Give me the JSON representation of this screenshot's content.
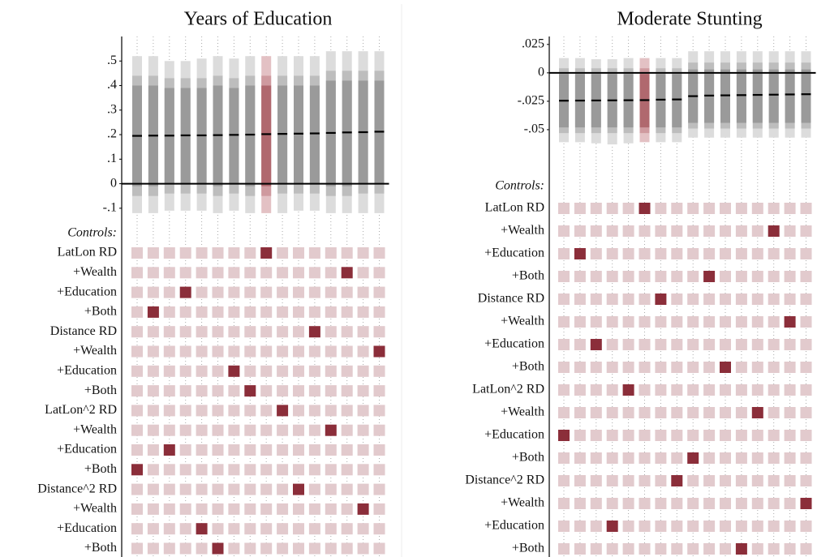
{
  "chart_data": [
    {
      "type": "spec_curve",
      "title": "Years of Education",
      "ylim": [
        -0.16,
        0.6
      ],
      "yticks": [
        {
          "value": 0.5,
          "label": ".5"
        },
        {
          "value": 0.4,
          "label": ".4"
        },
        {
          "value": 0.3,
          "label": ".3"
        },
        {
          "value": 0.2,
          "label": ".2"
        },
        {
          "value": 0.1,
          "label": ".1"
        },
        0,
        {
          "value": -0.1,
          "label": "-.1"
        }
      ],
      "estimates": [
        0.195,
        0.196,
        0.196,
        0.197,
        0.197,
        0.198,
        0.199,
        0.2,
        0.202,
        0.203,
        0.204,
        0.205,
        0.207,
        0.209,
        0.21,
        0.212
      ],
      "bands": [
        {
          "lo": [
            -0.12,
            -0.12,
            -0.11,
            -0.11,
            -0.11,
            -0.12,
            -0.11,
            -0.12,
            -0.12,
            -0.12,
            -0.11,
            -0.11,
            -0.12,
            -0.12,
            -0.12,
            -0.12
          ],
          "hi": [
            0.52,
            0.52,
            0.5,
            0.5,
            0.51,
            0.52,
            0.51,
            0.52,
            0.52,
            0.52,
            0.52,
            0.52,
            0.54,
            0.54,
            0.54,
            0.54
          ]
        },
        {
          "lo": [
            -0.05,
            -0.05,
            -0.04,
            -0.04,
            -0.04,
            -0.05,
            -0.04,
            -0.05,
            -0.05,
            -0.04,
            -0.04,
            -0.04,
            -0.05,
            -0.05,
            -0.04,
            -0.04
          ],
          "hi": [
            0.44,
            0.44,
            0.43,
            0.43,
            0.43,
            0.44,
            0.43,
            0.44,
            0.44,
            0.44,
            0.44,
            0.44,
            0.46,
            0.46,
            0.46,
            0.46
          ]
        },
        {
          "lo": [
            -0.01,
            -0.01,
            0,
            0,
            0,
            -0.01,
            0,
            -0.01,
            -0.01,
            0,
            0,
            0,
            -0.01,
            -0.01,
            0,
            0
          ],
          "hi": [
            0.4,
            0.4,
            0.39,
            0.39,
            0.39,
            0.4,
            0.39,
            0.4,
            0.4,
            0.4,
            0.4,
            0.4,
            0.42,
            0.42,
            0.42,
            0.42
          ]
        }
      ],
      "controls_label": "Controls:",
      "controls": [
        {
          "label": "LatLon RD",
          "selected": 8
        },
        {
          "label": "+Wealth",
          "selected": 13
        },
        {
          "label": "+Education",
          "selected": 3
        },
        {
          "label": "+Both",
          "selected": 1
        },
        {
          "label": "Distance RD",
          "selected": 11
        },
        {
          "label": "+Wealth",
          "selected": 15
        },
        {
          "label": "+Education",
          "selected": 6
        },
        {
          "label": "+Both",
          "selected": 7
        },
        {
          "label": "LatLon^2 RD",
          "selected": 9
        },
        {
          "label": "+Wealth",
          "selected": 12
        },
        {
          "label": "+Education",
          "selected": 2
        },
        {
          "label": "+Both",
          "selected": 0
        },
        {
          "label": "Distance^2 RD",
          "selected": 10
        },
        {
          "label": "+Wealth",
          "selected": 14
        },
        {
          "label": "+Education",
          "selected": 4
        },
        {
          "label": "+Both",
          "selected": 5
        }
      ],
      "band_colors": [
        "#dcdcdc",
        "#bdbdbd",
        "#9a9a9a"
      ],
      "highlight_colors": [
        "#e3c1c4",
        "#cf9a9f",
        "#b0686e"
      ],
      "cell_color": "#e2cacd",
      "selected_color": "#8b2e3a"
    },
    {
      "type": "spec_curve",
      "title": "Moderate Stunting",
      "ylim": [
        -0.09,
        0.032
      ],
      "yticks": [
        {
          "value": 0.025,
          "label": ".025"
        },
        0,
        {
          "value": -0.025,
          "label": "-.025"
        },
        {
          "value": -0.05,
          "label": "-.05"
        }
      ],
      "estimates": [
        -0.0245,
        -0.0244,
        -0.0243,
        -0.0242,
        -0.0241,
        -0.024,
        -0.0236,
        -0.0234,
        -0.0205,
        -0.02,
        -0.0198,
        -0.0196,
        -0.0194,
        -0.0192,
        -0.019,
        -0.0188
      ],
      "bands": [
        {
          "lo": [
            -0.061,
            -0.061,
            -0.062,
            -0.063,
            -0.062,
            -0.061,
            -0.061,
            -0.061,
            -0.057,
            -0.057,
            -0.057,
            -0.057,
            -0.057,
            -0.057,
            -0.057,
            -0.057
          ],
          "hi": [
            0.013,
            0.013,
            0.012,
            0.012,
            0.013,
            0.013,
            0.013,
            0.013,
            0.019,
            0.019,
            0.019,
            0.019,
            0.019,
            0.019,
            0.019,
            0.019
          ]
        },
        {
          "lo": [
            -0.053,
            -0.053,
            -0.053,
            -0.053,
            -0.053,
            -0.053,
            -0.053,
            -0.053,
            -0.049,
            -0.049,
            -0.049,
            -0.049,
            -0.049,
            -0.049,
            -0.049,
            -0.049
          ],
          "hi": [
            0.004,
            0.004,
            0.004,
            0.004,
            0.004,
            0.004,
            0.004,
            0.004,
            0.009,
            0.009,
            0.009,
            0.009,
            0.009,
            0.009,
            0.009,
            0.009
          ]
        },
        {
          "lo": [
            -0.048,
            -0.048,
            -0.048,
            -0.048,
            -0.048,
            -0.048,
            -0.048,
            -0.048,
            -0.044,
            -0.044,
            -0.044,
            -0.044,
            -0.044,
            -0.044,
            -0.044,
            -0.044
          ],
          "hi": [
            -0.001,
            -0.001,
            -0.001,
            -0.001,
            -0.001,
            -0.001,
            -0.001,
            -0.001,
            0.003,
            0.003,
            0.003,
            0.003,
            0.003,
            0.003,
            0.003,
            0.003
          ]
        }
      ],
      "controls_label": "Controls:",
      "controls": [
        {
          "label": "LatLon RD",
          "selected": 5
        },
        {
          "label": "+Wealth",
          "selected": 13
        },
        {
          "label": "+Education",
          "selected": 1
        },
        {
          "label": "+Both",
          "selected": 9
        },
        {
          "label": "Distance RD",
          "selected": 6
        },
        {
          "label": "+Wealth",
          "selected": 14
        },
        {
          "label": "+Education",
          "selected": 2
        },
        {
          "label": "+Both",
          "selected": 10
        },
        {
          "label": "LatLon^2 RD",
          "selected": 4
        },
        {
          "label": "+Wealth",
          "selected": 12
        },
        {
          "label": "+Education",
          "selected": 0
        },
        {
          "label": "+Both",
          "selected": 8
        },
        {
          "label": "Distance^2 RD",
          "selected": 7
        },
        {
          "label": "+Wealth",
          "selected": 15
        },
        {
          "label": "+Education",
          "selected": 3
        },
        {
          "label": "+Both",
          "selected": 11
        }
      ],
      "band_colors": [
        "#dcdcdc",
        "#bdbdbd",
        "#9a9a9a"
      ],
      "highlight_colors": [
        "#e3c1c4",
        "#cf9a9f",
        "#b0686e"
      ],
      "cell_color": "#e2cacd",
      "selected_color": "#8b2e3a"
    }
  ]
}
